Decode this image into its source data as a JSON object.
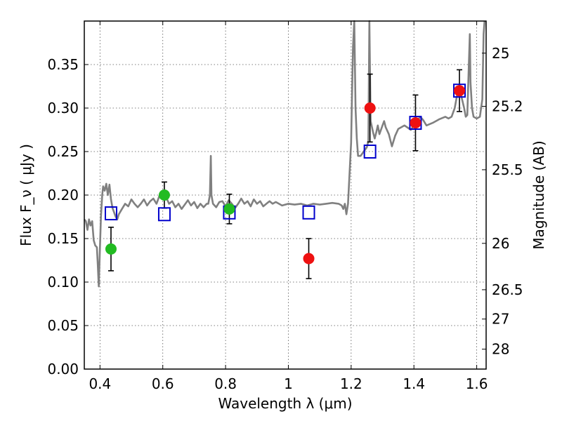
{
  "chart_data": {
    "type": "scatter",
    "xlabel": "Wavelength  λ (μm)",
    "ylabel": "Flux  F_ν  ( μJy )",
    "ylabel_right": "Magnitude (AB)",
    "xlim": [
      0.35,
      1.63
    ],
    "ylim": [
      0.0,
      0.4
    ],
    "grid": true,
    "x_ticks": [
      0.4,
      0.6,
      0.8,
      1.0,
      1.2,
      1.4,
      1.6
    ],
    "x_tick_labels": [
      "0.4",
      "0.6",
      "0.8",
      "1",
      "1.2",
      "1.4",
      "1.6"
    ],
    "y_ticks": [
      0.0,
      0.05,
      0.1,
      0.15,
      0.2,
      0.25,
      0.3,
      0.35
    ],
    "y_tick_labels": [
      "0.00",
      "0.05",
      "0.10",
      "0.15",
      "0.20",
      "0.25",
      "0.30",
      "0.35"
    ],
    "right_axis_ticks": [
      {
        "label": "25",
        "flux": 0.3631
      },
      {
        "label": "25.2",
        "flux": 0.302
      },
      {
        "label": "25.5",
        "flux": 0.2291
      },
      {
        "label": "26",
        "flux": 0.1445
      },
      {
        "label": "26.5",
        "flux": 0.0912
      },
      {
        "label": "27",
        "flux": 0.0575
      },
      {
        "label": "28",
        "flux": 0.0229
      }
    ],
    "series": [
      {
        "type": "line",
        "color": "#808080",
        "points": [
          [
            0.35,
            0.172
          ],
          [
            0.355,
            0.17
          ],
          [
            0.36,
            0.16
          ],
          [
            0.365,
            0.172
          ],
          [
            0.37,
            0.165
          ],
          [
            0.375,
            0.17
          ],
          [
            0.38,
            0.148
          ],
          [
            0.385,
            0.142
          ],
          [
            0.39,
            0.14
          ],
          [
            0.393,
            0.12
          ],
          [
            0.396,
            0.095
          ],
          [
            0.4,
            0.14
          ],
          [
            0.403,
            0.175
          ],
          [
            0.407,
            0.2
          ],
          [
            0.41,
            0.21
          ],
          [
            0.415,
            0.205
          ],
          [
            0.42,
            0.213
          ],
          [
            0.425,
            0.2
          ],
          [
            0.43,
            0.212
          ],
          [
            0.435,
            0.195
          ],
          [
            0.44,
            0.185
          ],
          [
            0.45,
            0.175
          ],
          [
            0.455,
            0.172
          ],
          [
            0.46,
            0.178
          ],
          [
            0.47,
            0.184
          ],
          [
            0.48,
            0.19
          ],
          [
            0.49,
            0.187
          ],
          [
            0.5,
            0.195
          ],
          [
            0.51,
            0.19
          ],
          [
            0.52,
            0.186
          ],
          [
            0.53,
            0.19
          ],
          [
            0.54,
            0.195
          ],
          [
            0.55,
            0.188
          ],
          [
            0.56,
            0.193
          ],
          [
            0.57,
            0.196
          ],
          [
            0.58,
            0.19
          ],
          [
            0.59,
            0.2
          ],
          [
            0.6,
            0.205
          ],
          [
            0.61,
            0.198
          ],
          [
            0.62,
            0.19
          ],
          [
            0.63,
            0.193
          ],
          [
            0.64,
            0.186
          ],
          [
            0.65,
            0.19
          ],
          [
            0.66,
            0.184
          ],
          [
            0.67,
            0.189
          ],
          [
            0.68,
            0.194
          ],
          [
            0.69,
            0.188
          ],
          [
            0.7,
            0.192
          ],
          [
            0.71,
            0.185
          ],
          [
            0.72,
            0.19
          ],
          [
            0.73,
            0.186
          ],
          [
            0.74,
            0.19
          ],
          [
            0.745,
            0.19
          ],
          [
            0.75,
            0.2
          ],
          [
            0.753,
            0.245
          ],
          [
            0.755,
            0.2
          ],
          [
            0.76,
            0.19
          ],
          [
            0.77,
            0.186
          ],
          [
            0.78,
            0.192
          ],
          [
            0.79,
            0.193
          ],
          [
            0.8,
            0.187
          ],
          [
            0.81,
            0.194
          ],
          [
            0.82,
            0.19
          ],
          [
            0.83,
            0.185
          ],
          [
            0.84,
            0.19
          ],
          [
            0.85,
            0.196
          ],
          [
            0.86,
            0.19
          ],
          [
            0.87,
            0.193
          ],
          [
            0.88,
            0.187
          ],
          [
            0.89,
            0.195
          ],
          [
            0.9,
            0.19
          ],
          [
            0.91,
            0.193
          ],
          [
            0.92,
            0.187
          ],
          [
            0.93,
            0.19
          ],
          [
            0.94,
            0.193
          ],
          [
            0.95,
            0.19
          ],
          [
            0.96,
            0.192
          ],
          [
            0.97,
            0.19
          ],
          [
            0.98,
            0.188
          ],
          [
            1.0,
            0.19
          ],
          [
            1.02,
            0.189
          ],
          [
            1.04,
            0.19
          ],
          [
            1.06,
            0.188
          ],
          [
            1.08,
            0.19
          ],
          [
            1.1,
            0.189
          ],
          [
            1.12,
            0.19
          ],
          [
            1.14,
            0.191
          ],
          [
            1.16,
            0.19
          ],
          [
            1.17,
            0.188
          ],
          [
            1.175,
            0.184
          ],
          [
            1.18,
            0.19
          ],
          [
            1.185,
            0.178
          ],
          [
            1.19,
            0.19
          ],
          [
            1.2,
            0.26
          ],
          [
            1.203,
            0.32
          ],
          [
            1.206,
            0.37
          ],
          [
            1.21,
            0.4
          ],
          [
            1.214,
            0.3
          ],
          [
            1.218,
            0.265
          ],
          [
            1.222,
            0.245
          ],
          [
            1.23,
            0.245
          ],
          [
            1.24,
            0.25
          ],
          [
            1.25,
            0.255
          ],
          [
            1.255,
            0.262
          ],
          [
            1.258,
            0.4
          ],
          [
            1.262,
            0.285
          ],
          [
            1.27,
            0.272
          ],
          [
            1.275,
            0.265
          ],
          [
            1.28,
            0.272
          ],
          [
            1.285,
            0.28
          ],
          [
            1.29,
            0.27
          ],
          [
            1.3,
            0.28
          ],
          [
            1.305,
            0.285
          ],
          [
            1.31,
            0.278
          ],
          [
            1.32,
            0.27
          ],
          [
            1.33,
            0.256
          ],
          [
            1.34,
            0.268
          ],
          [
            1.35,
            0.276
          ],
          [
            1.37,
            0.28
          ],
          [
            1.39,
            0.275
          ],
          [
            1.41,
            0.285
          ],
          [
            1.42,
            0.29
          ],
          [
            1.43,
            0.286
          ],
          [
            1.44,
            0.28
          ],
          [
            1.46,
            0.283
          ],
          [
            1.48,
            0.287
          ],
          [
            1.5,
            0.29
          ],
          [
            1.51,
            0.288
          ],
          [
            1.52,
            0.29
          ],
          [
            1.53,
            0.3
          ],
          [
            1.54,
            0.32
          ],
          [
            1.55,
            0.315
          ],
          [
            1.56,
            0.3
          ],
          [
            1.565,
            0.29
          ],
          [
            1.57,
            0.292
          ],
          [
            1.575,
            0.35
          ],
          [
            1.578,
            0.385
          ],
          [
            1.58,
            0.33
          ],
          [
            1.585,
            0.3
          ],
          [
            1.59,
            0.29
          ],
          [
            1.6,
            0.288
          ],
          [
            1.61,
            0.29
          ],
          [
            1.618,
            0.31
          ],
          [
            1.622,
            0.385
          ],
          [
            1.625,
            0.4
          ]
        ]
      },
      {
        "type": "scatter",
        "marker": "square",
        "color": "#0000cc",
        "points": [
          [
            0.435,
            0.179
          ],
          [
            0.605,
            0.178
          ],
          [
            0.812,
            0.18
          ],
          [
            1.065,
            0.18
          ],
          [
            1.26,
            0.25
          ],
          [
            1.405,
            0.283
          ],
          [
            1.545,
            0.32
          ]
        ]
      },
      {
        "type": "errorbar",
        "marker": "circle",
        "color": "#22bb22",
        "points": [
          {
            "x": 0.435,
            "y": 0.138,
            "err": 0.025
          },
          {
            "x": 0.605,
            "y": 0.2,
            "err": 0.015
          },
          {
            "x": 0.812,
            "y": 0.184,
            "err": 0.017
          }
        ]
      },
      {
        "type": "errorbar",
        "marker": "circle",
        "color": "#ee1111",
        "points": [
          {
            "x": 1.065,
            "y": 0.127,
            "err": 0.023
          },
          {
            "x": 1.26,
            "y": 0.3,
            "err": 0.039
          },
          {
            "x": 1.405,
            "y": 0.283,
            "err": 0.032
          },
          {
            "x": 1.545,
            "y": 0.32,
            "err": 0.024
          }
        ]
      }
    ]
  }
}
